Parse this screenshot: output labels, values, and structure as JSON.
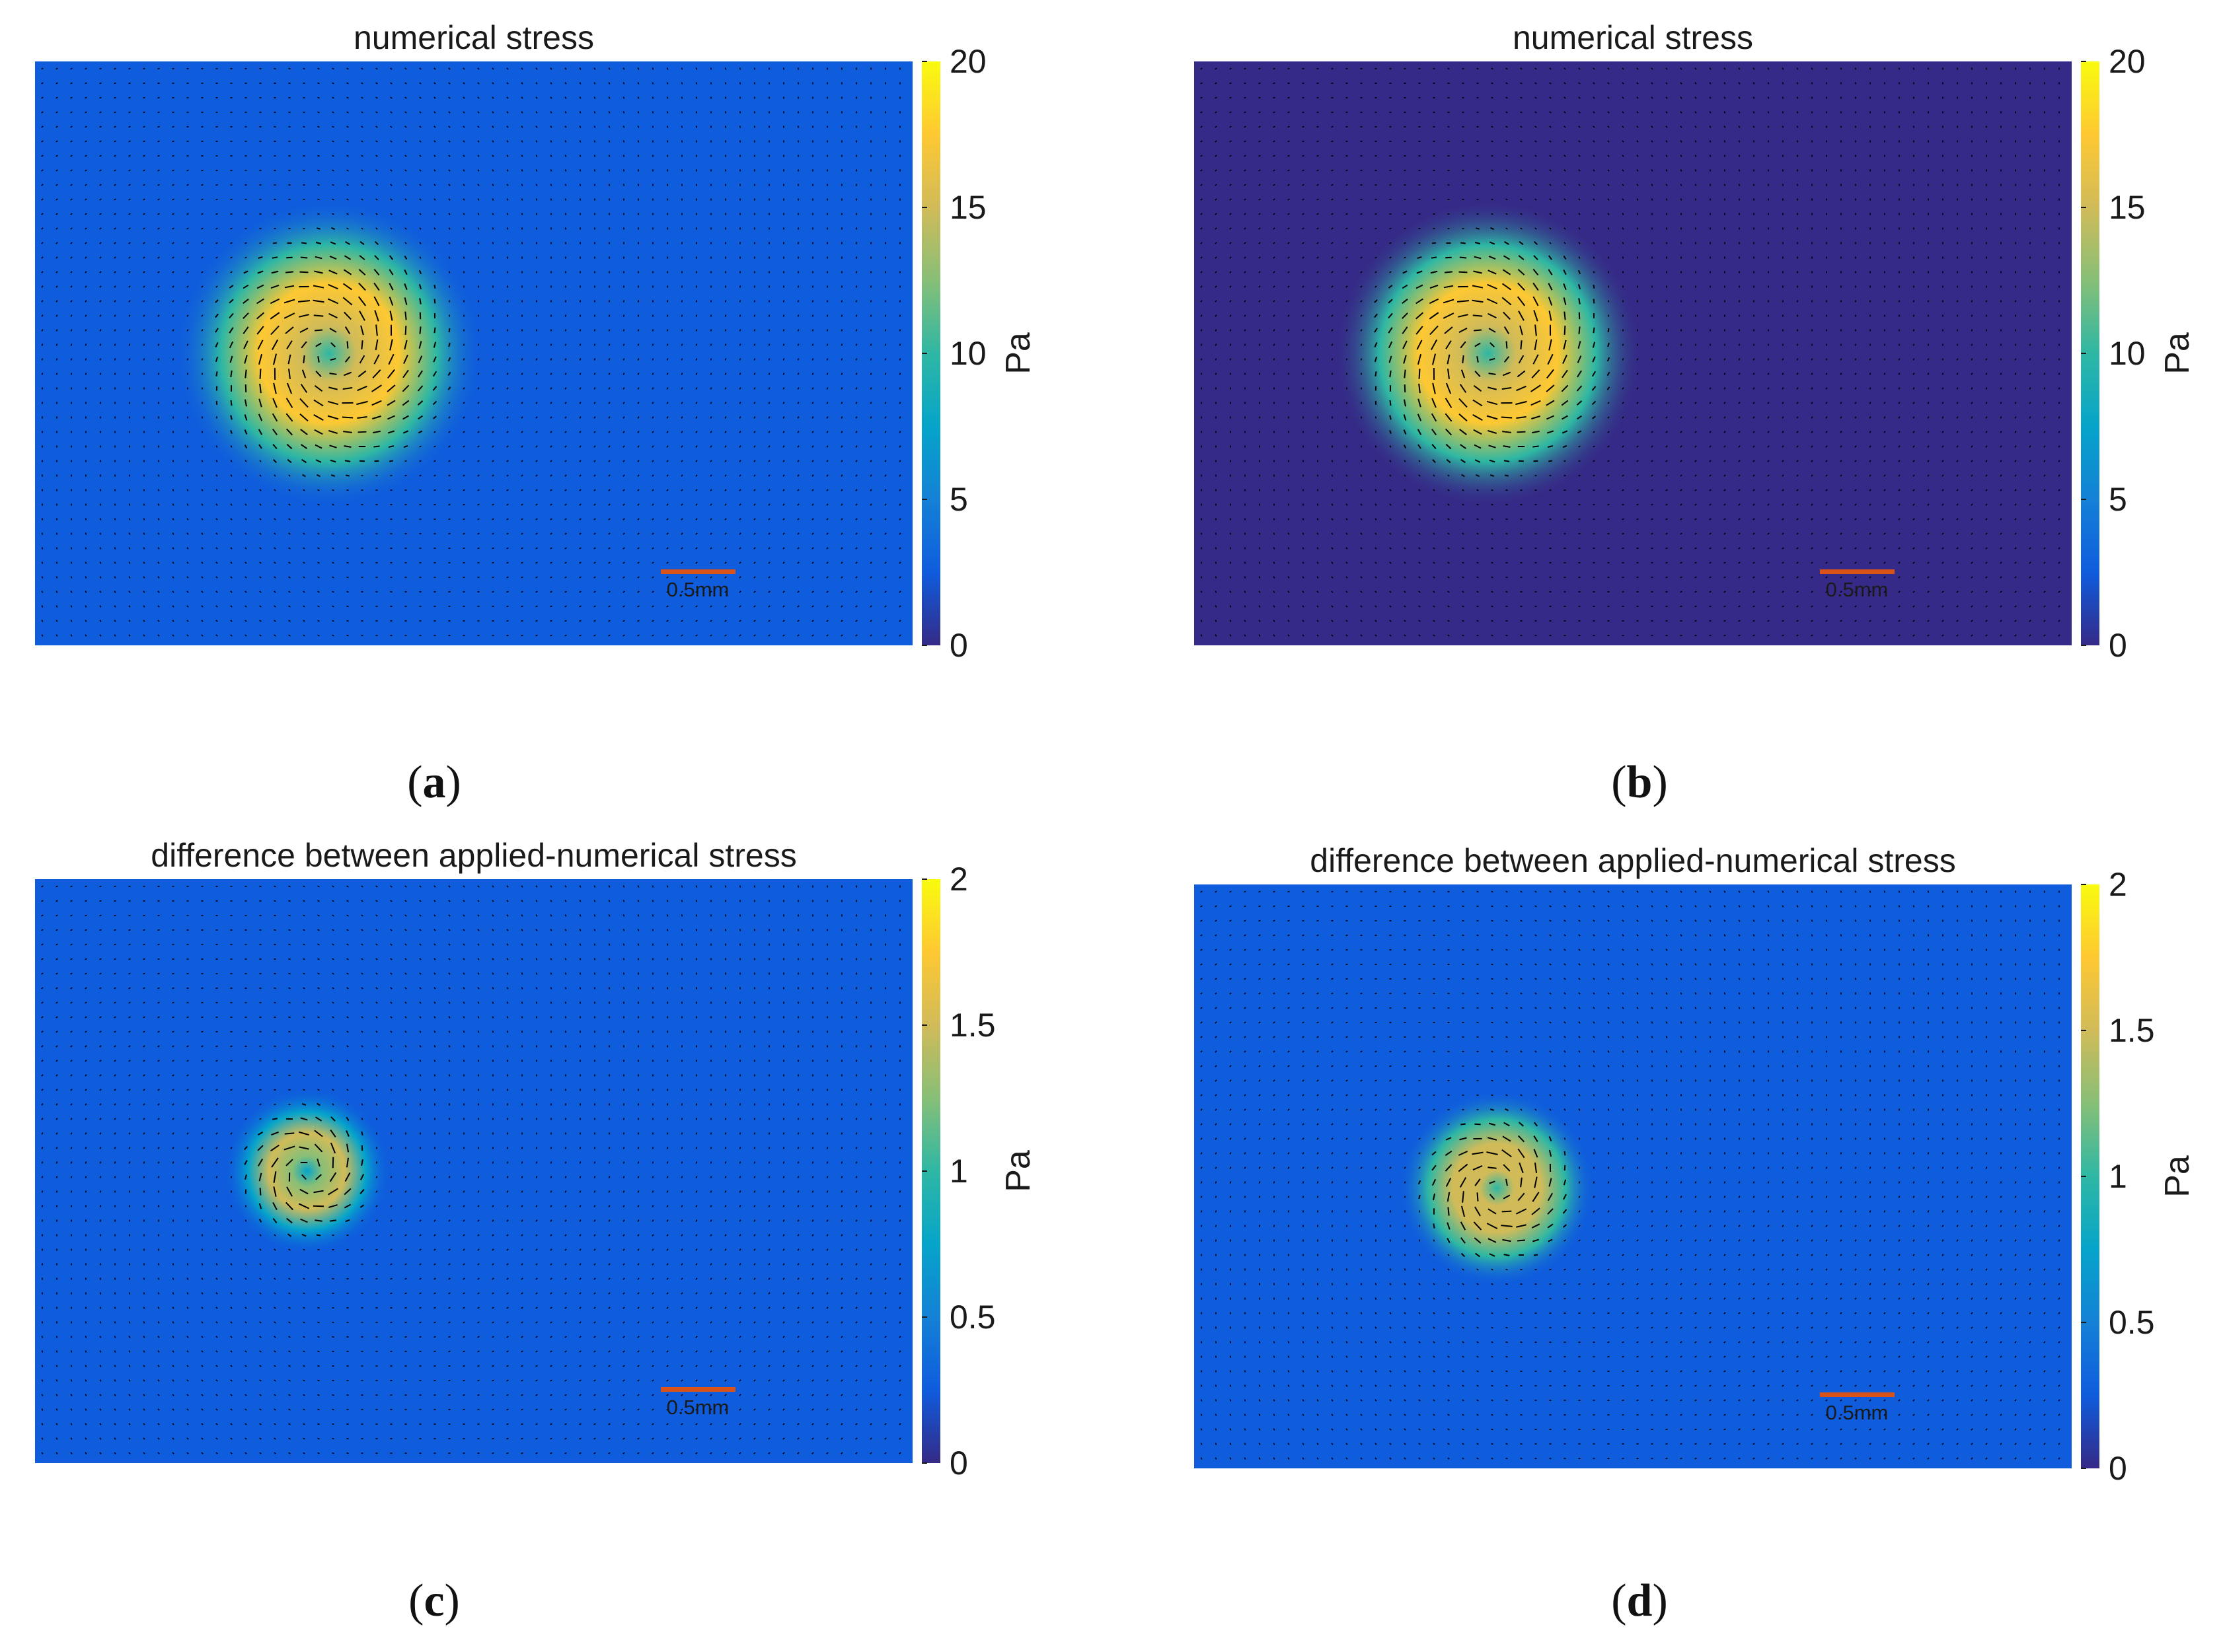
{
  "chart_data": [
    {
      "type": "heatmap",
      "panel": "(a)",
      "title": "numerical stress",
      "colorbar": {
        "label": "Pa",
        "range": [
          0,
          20
        ],
        "ticks": [
          "0",
          "5",
          "10",
          "15",
          "20"
        ]
      },
      "field": {
        "colormap": "parula",
        "background_value": 1.3,
        "vortex_center_fraction": [
          0.335,
          0.5
        ],
        "peak_value": 17,
        "vortex_radius_fraction": 0.11
      },
      "vector_field": true,
      "scale_bar": "0.5mm",
      "caption_letter": "a"
    },
    {
      "type": "heatmap",
      "panel": "(b)",
      "title": "numerical stress",
      "colorbar": {
        "label": "Pa",
        "range": [
          0,
          20
        ],
        "ticks": [
          "0",
          "5",
          "10",
          "15",
          "20"
        ]
      },
      "field": {
        "colormap": "parula",
        "background_value": 1.2,
        "vortex_center_fraction": [
          0.335,
          0.5
        ],
        "peak_value": 17,
        "vortex_radius_fraction": 0.11
      },
      "vector_field": true,
      "scale_bar": "0.5mm",
      "caption_letter": "b"
    },
    {
      "type": "heatmap",
      "panel": "(c)",
      "title": "difference between applied-numerical stress",
      "colorbar": {
        "label": "Pa",
        "range": [
          0,
          2
        ],
        "ticks": [
          "0",
          "0.5",
          "1",
          "1.5",
          "2"
        ]
      },
      "field": {
        "colormap": "parula",
        "background_value": 0.22,
        "vortex_center_fraction": [
          0.31,
          0.5
        ],
        "peak_value": 1.4,
        "vortex_radius_fraction": 0.06
      },
      "vector_field": true,
      "scale_bar": "0.5mm",
      "caption_letter": "c"
    },
    {
      "type": "heatmap",
      "panel": "(d)",
      "title": "difference between applied-numerical stress",
      "colorbar": {
        "label": "Pa",
        "range": [
          0,
          2
        ],
        "ticks": [
          "0",
          "0.5",
          "1",
          "1.5",
          "2"
        ]
      },
      "field": {
        "colormap": "parula",
        "background_value": 0.22,
        "vortex_center_fraction": [
          0.345,
          0.52
        ],
        "peak_value": 1.6,
        "vortex_radius_fraction": 0.07
      },
      "vector_field": true,
      "scale_bar": "0.5mm",
      "caption_letter": "d"
    }
  ],
  "colors": {
    "parula": [
      "#352a87",
      "#0f5cdd",
      "#1481d6",
      "#06a4ca",
      "#2eb7a4",
      "#87bf77",
      "#d1bb59",
      "#fec832",
      "#f9fb0e"
    ],
    "scale_bar": "#d95319",
    "arrow": "#000000"
  }
}
